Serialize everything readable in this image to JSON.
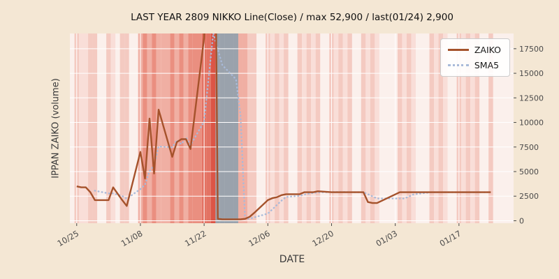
{
  "figure": {
    "background": "#f4e7d4",
    "plot_background": "#fbf0ec",
    "grid_color": "#ffffff",
    "tick_color": "#4a4a4a"
  },
  "chart_data": {
    "type": "line",
    "title": "LAST YEAR 2809 NIKKO Line(Close) / max 52,900 / last(01/24) 2,900",
    "xlabel": "DATE",
    "ylabel": "IPPAN ZAIKO (volume)",
    "legend_position": "upper right",
    "grid": true,
    "max_value": 52900,
    "max_label": "max 52,900",
    "last_label": "last(01/24) 2,900",
    "last_date": "01/24",
    "last_value": 2900,
    "xlim": [
      -1.5,
      96
    ],
    "ylim": [
      -250,
      19050
    ],
    "x_ticks": [
      {
        "day": 0,
        "label": "10/25"
      },
      {
        "day": 14,
        "label": "11/08"
      },
      {
        "day": 28,
        "label": "11/22"
      },
      {
        "day": 42,
        "label": "12/06"
      },
      {
        "day": 56,
        "label": "12/20"
      },
      {
        "day": 70,
        "label": "01/03"
      },
      {
        "day": 84,
        "label": "01/17"
      }
    ],
    "y_ticks": [
      0,
      2500,
      5000,
      7500,
      10000,
      12500,
      15000,
      17500
    ],
    "dates": [
      "10/25",
      "10/26",
      "10/27",
      "10/28",
      "10/29",
      "11/01",
      "11/02",
      "11/04",
      "11/05",
      "11/08",
      "11/09",
      "11/10",
      "11/11",
      "11/12",
      "11/15",
      "11/16",
      "11/17",
      "11/18",
      "11/19",
      "11/22",
      "11/24",
      "11/25",
      "11/26",
      "11/29",
      "11/30",
      "12/01",
      "12/02",
      "12/03",
      "12/06",
      "12/07",
      "12/08",
      "12/09",
      "12/10",
      "12/13",
      "12/14",
      "12/15",
      "12/16",
      "12/17",
      "12/20",
      "12/21",
      "12/22",
      "12/23",
      "12/24",
      "12/27",
      "12/28",
      "12/29",
      "12/30",
      "01/04",
      "01/05",
      "01/06",
      "01/07",
      "01/11",
      "01/12",
      "01/13",
      "01/14",
      "01/17",
      "01/18",
      "01/19",
      "01/20",
      "01/21",
      "01/24"
    ],
    "days": [
      0,
      1,
      2,
      3,
      4,
      7,
      8,
      10,
      11,
      14,
      15,
      16,
      17,
      18,
      21,
      22,
      23,
      24,
      25,
      28,
      30,
      31,
      32,
      35,
      36,
      37,
      38,
      39,
      42,
      43,
      44,
      45,
      46,
      49,
      50,
      51,
      52,
      53,
      56,
      57,
      58,
      59,
      60,
      63,
      64,
      65,
      66,
      71,
      72,
      73,
      74,
      78,
      79,
      80,
      81,
      84,
      85,
      86,
      87,
      88,
      91
    ],
    "series": [
      {
        "name": "ZAIKO",
        "color": "#a5522b",
        "style": "solid",
        "values": [
          3500,
          3400,
          3400,
          2900,
          2100,
          2100,
          3400,
          2100,
          1500,
          7000,
          4300,
          10400,
          4800,
          11300,
          6500,
          8000,
          8300,
          8300,
          7300,
          18600,
          52900,
          200,
          150,
          150,
          150,
          200,
          400,
          800,
          2100,
          2300,
          2400,
          2600,
          2700,
          2700,
          2900,
          2900,
          2900,
          3000,
          2900,
          2900,
          2900,
          2900,
          2900,
          2900,
          1900,
          1800,
          1800,
          2900,
          2900,
          2900,
          2900,
          2900,
          2900,
          2900,
          2900,
          2900,
          2900,
          2900,
          2900,
          2900,
          2900
        ]
      },
      {
        "name": "SMA5",
        "color": "#a9bad9",
        "style": "dotted",
        "derived": "5-day moving average of ZAIKO"
      }
    ],
    "band_colors": [
      "#f4cac1",
      "#f9ded8",
      "#f9ded8",
      "#f4cac1",
      "#f4cac1",
      "#f4cac1",
      "#f9ded8",
      "#f4cac1",
      "#f4cac1",
      "#f0afa3",
      "#ea8f80",
      "#f0afa3",
      "#ea8f80",
      "#f0afa3",
      "#ea8f80",
      "#f0afa3",
      "#ea8f80",
      "#f0afa3",
      "#ea8f80",
      "#e37263",
      "#dc5546",
      "#9aa2ac",
      "#9aa2ac",
      "#9aa2ac",
      "#f0afa3",
      "#f0afa3",
      "#f4cac1",
      "#f4cac1",
      "#f4cac1",
      "#f9ded8",
      "#f4cac1",
      "#f9ded8",
      "#f4cac1",
      "#f4cac1",
      "#f9ded8",
      "#f4cac1",
      "#f9ded8",
      "#f4cac1",
      "#f4cac1",
      "#f9ded8",
      "#f4cac1",
      "#f9ded8",
      "#f4cac1",
      "#f4cac1",
      "#f9ded8",
      "#f4cac1",
      "#f9ded8",
      "#f4cac1",
      "#f9ded8",
      "#f4cac1",
      "#f9ded8",
      "#f4cac1",
      "#f9ded8",
      "#f4cac1",
      "#f9ded8",
      "#f4cac1",
      "#f9ded8",
      "#f4cac1",
      "#f9ded8",
      "#f4cac1",
      "#f4cac1"
    ],
    "band_spans": [
      {
        "x0": 18.5,
        "x1": 20.5,
        "color": "#f0afa3"
      },
      {
        "x0": 25.5,
        "x1": 27.5,
        "color": "#ea8f80"
      },
      {
        "x0": 28.5,
        "x1": 29.5,
        "color": "#e37263"
      },
      {
        "x0": 32.5,
        "x1": 34.5,
        "color": "#9aa2ac"
      }
    ]
  }
}
